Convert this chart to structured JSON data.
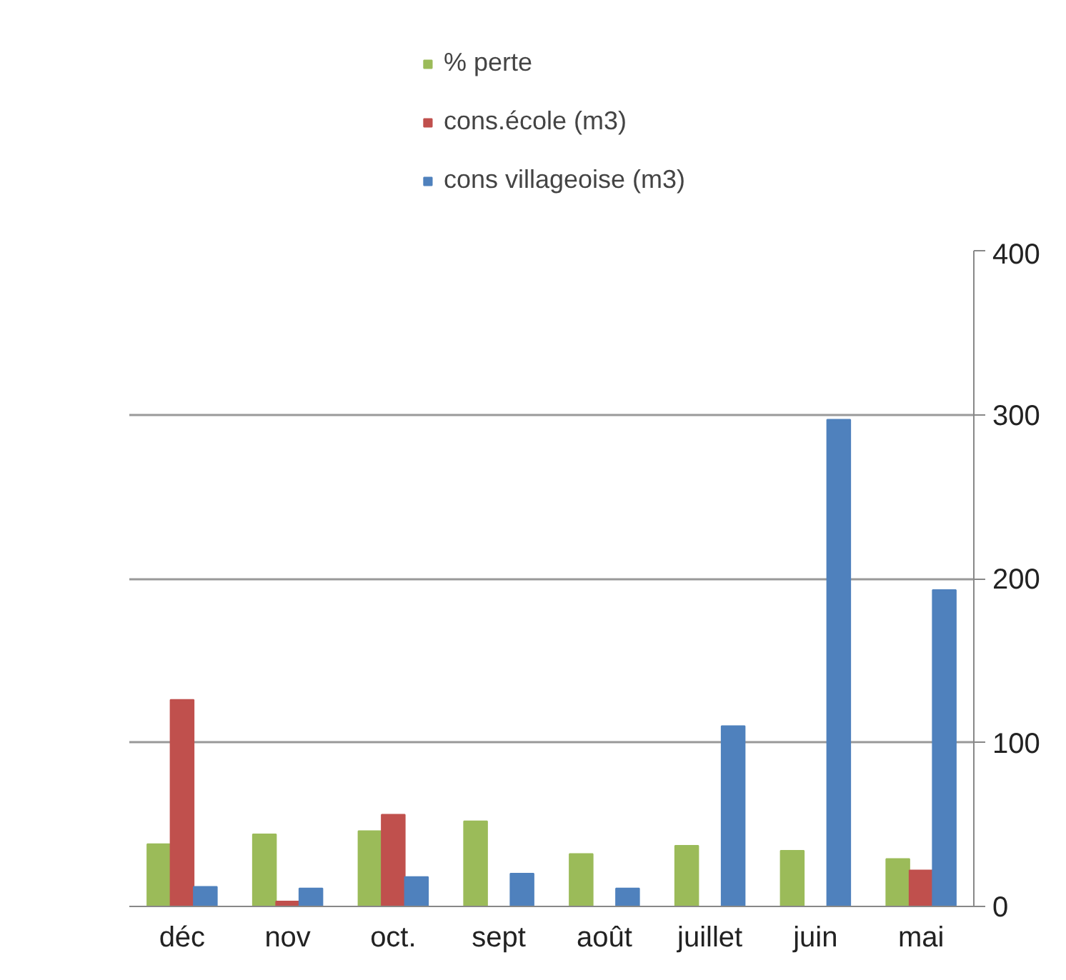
{
  "chart_data": {
    "type": "bar",
    "categories": [
      "déc",
      "nov",
      "oct.",
      "sept",
      "août",
      "juillet",
      "juin",
      "mai"
    ],
    "series": [
      {
        "name": "% perte",
        "color": "#9bbb59",
        "values": [
          38,
          44,
          46,
          52,
          32,
          37,
          34,
          29
        ]
      },
      {
        "name": "cons.école (m3)",
        "color": "#c0504d",
        "values": [
          126,
          3,
          56,
          null,
          null,
          null,
          null,
          22
        ]
      },
      {
        "name": "cons villageoise (m3)",
        "color": "#4f81bd",
        "values": [
          12,
          11,
          18,
          20,
          11,
          110,
          297,
          193
        ]
      }
    ],
    "ylim": [
      0,
      400
    ],
    "yticks": [
      0,
      100,
      200,
      300,
      400
    ],
    "grid": "y",
    "legend": "top"
  }
}
